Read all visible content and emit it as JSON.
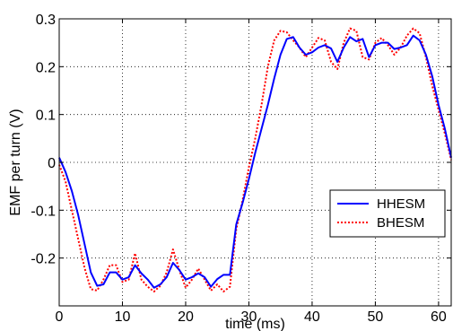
{
  "chart_data": {
    "type": "line",
    "title": "",
    "xlabel": "time (ms)",
    "ylabel": "EMF per turn (V)",
    "xlim": [
      0,
      62
    ],
    "ylim": [
      -0.3,
      0.3
    ],
    "xticks": [
      0,
      10,
      20,
      30,
      40,
      50,
      60
    ],
    "yticks": [
      -0.2,
      -0.1,
      0,
      0.1,
      0.2,
      0.3
    ],
    "xtick_labels": [
      "0",
      "10",
      "20",
      "30",
      "40",
      "50",
      "60"
    ],
    "ytick_labels": [
      "-0.2",
      "-0.1",
      "0",
      "0.1",
      "0.2",
      "0.3"
    ],
    "grid": true,
    "legend": {
      "position": "right",
      "entries": [
        "HHESM",
        "BHESM"
      ]
    },
    "series": [
      {
        "name": "HHESM",
        "color": "#0000ff",
        "style": "solid",
        "x": [
          0,
          1,
          2,
          3,
          4,
          5,
          6,
          7,
          8,
          9,
          10,
          11,
          12,
          13,
          14,
          15,
          16,
          17,
          18,
          19,
          20,
          21,
          22,
          23,
          24,
          25,
          26,
          27,
          28,
          29,
          30,
          31,
          32,
          33,
          34,
          35,
          36,
          37,
          38,
          39,
          40,
          41,
          42,
          43,
          44,
          45,
          46,
          47,
          48,
          49,
          50,
          51,
          52,
          53,
          54,
          55,
          56,
          57,
          58,
          59,
          60,
          61,
          62
        ],
        "y": [
          0.01,
          -0.02,
          -0.06,
          -0.11,
          -0.17,
          -0.23,
          -0.258,
          -0.255,
          -0.23,
          -0.23,
          -0.245,
          -0.24,
          -0.215,
          -0.232,
          -0.245,
          -0.262,
          -0.255,
          -0.24,
          -0.21,
          -0.225,
          -0.245,
          -0.24,
          -0.232,
          -0.24,
          -0.26,
          -0.244,
          -0.235,
          -0.235,
          -0.13,
          -0.085,
          -0.035,
          0.02,
          0.07,
          0.12,
          0.175,
          0.225,
          0.258,
          0.262,
          0.24,
          0.225,
          0.23,
          0.24,
          0.245,
          0.238,
          0.21,
          0.24,
          0.262,
          0.253,
          0.258,
          0.22,
          0.245,
          0.25,
          0.25,
          0.237,
          0.24,
          0.245,
          0.265,
          0.255,
          0.225,
          0.18,
          0.12,
          0.07,
          0.01
        ]
      },
      {
        "name": "BHESM",
        "color": "#ff0000",
        "style": "dotted",
        "x": [
          0,
          1,
          2,
          3,
          4,
          5,
          6,
          7,
          8,
          9,
          10,
          11,
          12,
          13,
          14,
          15,
          16,
          17,
          18,
          19,
          20,
          21,
          22,
          23,
          24,
          25,
          26,
          27,
          28,
          29,
          30,
          31,
          32,
          33,
          34,
          35,
          36,
          37,
          38,
          39,
          40,
          41,
          42,
          43,
          44,
          45,
          46,
          47,
          48,
          49,
          50,
          51,
          52,
          53,
          54,
          55,
          56,
          57,
          58,
          59,
          60,
          61,
          62
        ],
        "y": [
          -0.005,
          -0.04,
          -0.1,
          -0.16,
          -0.22,
          -0.265,
          -0.268,
          -0.245,
          -0.215,
          -0.215,
          -0.25,
          -0.245,
          -0.19,
          -0.245,
          -0.26,
          -0.27,
          -0.258,
          -0.23,
          -0.182,
          -0.225,
          -0.262,
          -0.245,
          -0.222,
          -0.245,
          -0.268,
          -0.255,
          -0.27,
          -0.26,
          -0.14,
          -0.08,
          -0.01,
          0.05,
          0.12,
          0.2,
          0.255,
          0.275,
          0.272,
          0.255,
          0.24,
          0.22,
          0.24,
          0.26,
          0.255,
          0.21,
          0.195,
          0.25,
          0.28,
          0.275,
          0.22,
          0.215,
          0.25,
          0.26,
          0.245,
          0.225,
          0.24,
          0.265,
          0.28,
          0.27,
          0.22,
          0.16,
          0.11,
          0.06,
          0.005
        ]
      }
    ]
  }
}
